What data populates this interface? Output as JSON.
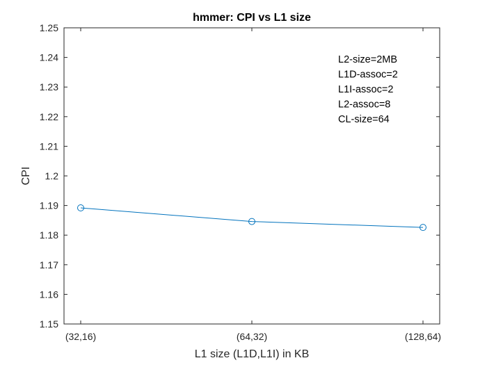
{
  "chart_data": {
    "type": "line",
    "title": "hmmer: CPI vs L1 size",
    "xlabel": "L1 size (L1D,L1I) in KB",
    "ylabel": "CPI",
    "categories": [
      "(32,16)",
      "(64,32)",
      "(128,64)"
    ],
    "series": [
      {
        "values": [
          1.1892,
          1.1846,
          1.1826
        ],
        "color": "#0072BD",
        "marker": "circle"
      }
    ],
    "ylim": [
      1.15,
      1.25
    ],
    "yticks": [
      "1.15",
      "1.16",
      "1.17",
      "1.18",
      "1.19",
      "1.2",
      "1.21",
      "1.22",
      "1.23",
      "1.24",
      "1.25"
    ],
    "grid": false,
    "annotation": [
      "L2-size=2MB",
      "L1D-assoc=2",
      "L1I-assoc=2",
      "L2-assoc=8",
      "CL-size=64"
    ]
  }
}
